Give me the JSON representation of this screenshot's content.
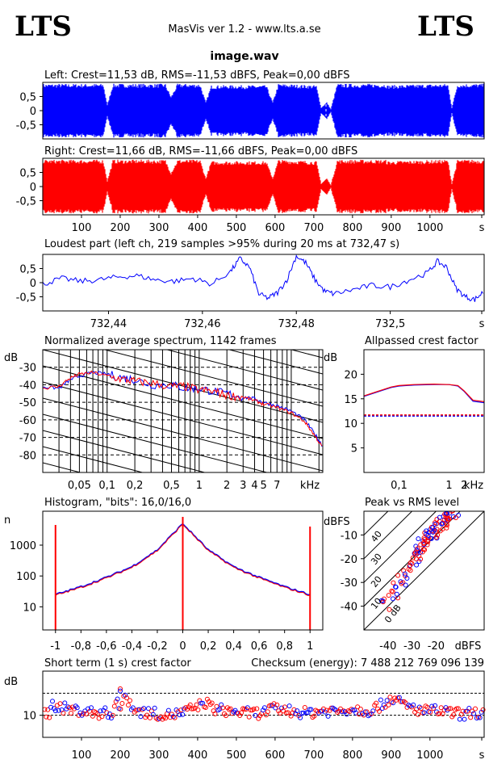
{
  "header": {
    "logo_left": "LTS",
    "logo_right": "LTS",
    "app_title": "MasVis ver 1.2 - www.lts.a.se",
    "file_name": "image.wav",
    "checksum_text": "Checksum (energy):  7 488 212 769 096 139"
  },
  "colors": {
    "left": "#0000ff",
    "right": "#ff0000",
    "grid": "#000000",
    "background": "#ffffff"
  },
  "chart_data": [
    {
      "id": "left-waveform",
      "type": "area",
      "title": "Left: Crest=11,53 dB, RMS=-11,53 dBFS, Peak=0,00 dBFS",
      "yticks": [
        "0,5",
        "0",
        "-0,5"
      ],
      "ylim": [
        -1,
        1
      ],
      "series": [
        {
          "name": "Left",
          "color": "#0000ff"
        }
      ]
    },
    {
      "id": "right-waveform",
      "type": "area",
      "title": "Right: Crest=11,66 dB, RMS=-11,66 dBFS, Peak=0,00 dBFS",
      "yticks": [
        "0,5",
        "0",
        "-0,5"
      ],
      "ylim": [
        -1,
        1
      ],
      "xticks": [
        "100",
        "200",
        "300",
        "400",
        "500",
        "600",
        "700",
        "800",
        "900",
        "1000",
        "s"
      ],
      "series": [
        {
          "name": "Right",
          "color": "#ff0000"
        }
      ]
    },
    {
      "id": "loudest-part",
      "type": "line",
      "title": "Loudest part (left  ch, 219 samples >95% during 20 ms at 732,47 s)",
      "yticks": [
        "0,5",
        "0",
        "-0,5"
      ],
      "xticks": [
        "732,44",
        "732,46",
        "732,48",
        "732,5",
        "s"
      ],
      "x": [
        732.426,
        732.43,
        732.434,
        732.438,
        732.442,
        732.446,
        732.45,
        732.454,
        732.458,
        732.462,
        732.466,
        732.468,
        732.47,
        732.472,
        732.474,
        732.476,
        732.478,
        732.48,
        732.482,
        732.484,
        732.486,
        732.488,
        732.492,
        732.496,
        732.5,
        732.504,
        732.508,
        732.51,
        732.512,
        732.514,
        732.516,
        732.518,
        732.52
      ],
      "y": [
        -0.05,
        0.15,
        0.05,
        0.1,
        0.2,
        0.25,
        0.1,
        0.05,
        0.15,
        -0.05,
        0.4,
        0.85,
        0.55,
        -0.4,
        -0.55,
        -0.35,
        0.1,
        0.95,
        0.7,
        0.1,
        -0.3,
        -0.4,
        -0.25,
        -0.1,
        -0.15,
        0.1,
        0.35,
        0.75,
        0.55,
        -0.2,
        -0.5,
        -0.6,
        -0.3
      ]
    },
    {
      "id": "normalized-spectrum",
      "type": "line",
      "title": "Normalized average spectrum, 1142 frames",
      "ylabel": "dB",
      "xlabel": "kHz",
      "yticks": [
        "-30",
        "-40",
        "-50",
        "-60",
        "-70",
        "-80"
      ],
      "ylim": [
        -90,
        -20
      ],
      "xticks": [
        "0,05",
        "0,1",
        "0,2",
        "0,5",
        "1",
        "2",
        "3",
        "4",
        "5",
        "7",
        "kHz"
      ],
      "xlim": [
        0.02,
        22
      ],
      "x": [
        0.02,
        0.03,
        0.04,
        0.05,
        0.07,
        0.1,
        0.15,
        0.2,
        0.3,
        0.5,
        0.7,
        1,
        1.5,
        2,
        3,
        4,
        5,
        7,
        10,
        14,
        18,
        22
      ],
      "series": [
        {
          "name": "Left",
          "color": "#0000ff",
          "values": [
            -41,
            -42,
            -37,
            -35,
            -33,
            -34,
            -36,
            -37,
            -40,
            -40,
            -42,
            -42,
            -44,
            -45,
            -47,
            -48,
            -50,
            -52,
            -55,
            -60,
            -68,
            -75
          ]
        },
        {
          "name": "Right",
          "color": "#ff0000",
          "values": [
            -42,
            -41,
            -36,
            -34,
            -33,
            -35,
            -37,
            -38,
            -39,
            -41,
            -41,
            -43,
            -44,
            -46,
            -47,
            -49,
            -51,
            -53,
            -56,
            -61,
            -69,
            -76
          ]
        }
      ]
    },
    {
      "id": "allpassed-crest",
      "type": "line",
      "title": "Allpassed crest factor",
      "ylabel": "dB",
      "xlabel": "kHz",
      "yticks": [
        "20",
        "15",
        "10",
        "5"
      ],
      "ylim": [
        0,
        25
      ],
      "xticks": [
        "0,1",
        "1",
        "2",
        "kHz"
      ],
      "xlim": [
        0.02,
        5
      ],
      "x": [
        0.02,
        0.04,
        0.07,
        0.1,
        0.2,
        0.5,
        1,
        1.5,
        2,
        3,
        5
      ],
      "series": [
        {
          "name": "Left",
          "color": "#0000ff",
          "values": [
            15.5,
            16.5,
            17.3,
            17.6,
            17.8,
            17.9,
            17.9,
            17.6,
            16.5,
            14.5,
            14.2
          ]
        },
        {
          "name": "Right",
          "color": "#ff0000",
          "values": [
            15.6,
            16.6,
            17.4,
            17.7,
            17.9,
            18.0,
            17.9,
            17.7,
            16.6,
            14.7,
            14.4
          ]
        }
      ],
      "reference_lines": [
        {
          "color": "#0000ff",
          "value": 11.5
        },
        {
          "color": "#ff0000",
          "value": 11.7
        }
      ]
    },
    {
      "id": "histogram",
      "type": "line",
      "title": "Histogram, \"bits\": 16,0/16,0",
      "ylabel": "n",
      "yticks": [
        "1000",
        "100",
        "10"
      ],
      "xticks": [
        "-1",
        "-0,8",
        "-0,6",
        "-0,4",
        "-0,2",
        "0",
        "0,2",
        "0,4",
        "0,6",
        "0,8",
        "1"
      ],
      "xlim": [
        -1.1,
        1.1
      ],
      "x": [
        -1,
        -0.8,
        -0.6,
        -0.4,
        -0.2,
        0,
        0.2,
        0.4,
        0.6,
        0.8,
        1
      ],
      "y": [
        25,
        45,
        90,
        200,
        700,
        5000,
        700,
        200,
        90,
        45,
        25
      ]
    },
    {
      "id": "peak-vs-rms",
      "type": "scatter",
      "title": "Peak vs RMS level",
      "ylabel": "dBFS",
      "xlabel": "dBFS",
      "yticks": [
        "-10",
        "-20",
        "-30",
        "-40"
      ],
      "ylim": [
        -50,
        0
      ],
      "xticks": [
        "-40",
        "-30",
        "-20",
        "dBFS"
      ],
      "xlim": [
        -50,
        0
      ],
      "diagonal_labels": [
        "40",
        "30",
        "20",
        "10",
        "0 dB"
      ],
      "x": [
        -41,
        -38,
        -36,
        -34,
        -32,
        -30,
        -29,
        -28,
        -27,
        -26,
        -25,
        -24,
        -23,
        -22,
        -21,
        -20,
        -19,
        -18,
        -17,
        -16,
        -15,
        -14,
        -13
      ],
      "y": [
        -39,
        -35,
        -32,
        -29,
        -26,
        -22,
        -20,
        -18,
        -16,
        -14,
        -12,
        -11,
        -10,
        -9,
        -8,
        -7,
        -6,
        -5,
        -4,
        -3,
        -2,
        -2,
        -1
      ]
    },
    {
      "id": "short-term-crest",
      "type": "scatter",
      "title": "Short term (1 s) crest factor",
      "ylabel": "dB",
      "yticks": [
        "10"
      ],
      "ylim": [
        0,
        30
      ],
      "xticks": [
        "100",
        "200",
        "300",
        "400",
        "500",
        "600",
        "700",
        "800",
        "900",
        "1000",
        "s"
      ],
      "xlim": [
        0,
        1140
      ],
      "x": [
        20,
        60,
        100,
        140,
        180,
        200,
        240,
        280,
        320,
        360,
        400,
        420,
        440,
        480,
        520,
        560,
        600,
        640,
        680,
        720,
        760,
        800,
        840,
        880,
        900,
        940,
        980,
        1020,
        1060,
        1100
      ],
      "y": [
        15,
        13,
        12,
        11,
        11,
        22,
        12,
        11,
        10,
        11,
        14,
        16,
        13,
        12,
        11,
        11,
        13,
        12,
        11,
        12,
        12,
        13,
        12,
        15,
        18,
        14,
        12,
        12,
        11,
        10
      ]
    }
  ]
}
